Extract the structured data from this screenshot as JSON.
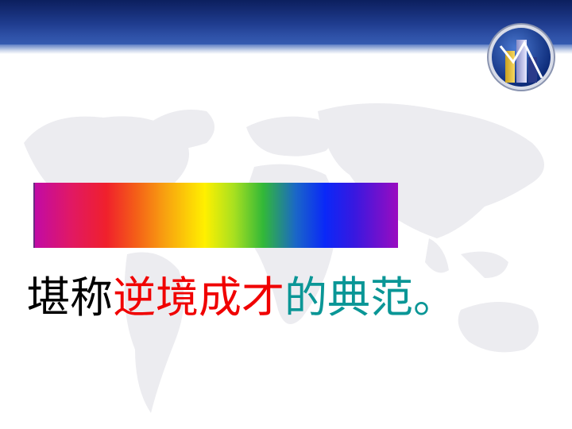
{
  "slide": {
    "headline": {
      "part1": "堪称",
      "part2": "逆境成才",
      "part3": "的典范。"
    }
  },
  "colors": {
    "header_dark": "#0c1f5e",
    "header_light": "#3a62b8",
    "text_black": "#000000",
    "text_red": "#f00000",
    "text_teal": "#0a9696",
    "map_gray": "#ececf0"
  },
  "icons": {
    "logo": "bar-chart-logo-icon",
    "background": "world-map-icon"
  }
}
